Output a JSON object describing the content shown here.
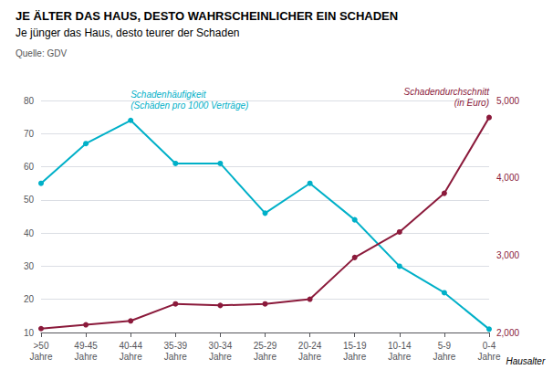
{
  "chart_data": {
    "type": "line",
    "title": "JE ÄLTER DAS HAUS, DESTO WAHRSCHEINLICHER EIN SCHADEN",
    "subtitle": "Je jünger das Haus, desto teurer der Schaden",
    "annotations": [
      "Quelle: GDV"
    ],
    "xlabel": "Hausalter",
    "categories": [
      ">50\nJahre",
      "49-45\nJahre",
      "40-44\nJahre",
      "35-39\nJahre",
      "30-34\nJahre",
      "25-29\nJahre",
      "20-24\nJahre",
      "15-19\nJahre",
      "10-14\nJahre",
      "5-9\nJahre",
      "0-4\nJahre"
    ],
    "series": [
      {
        "name": "Schadenhäufigkeit\n(Schäden pro 1000 Verträge)",
        "color": "#00B0C8",
        "values": [
          55,
          67,
          74,
          61,
          61,
          46,
          55,
          44,
          30,
          22,
          11
        ]
      },
      {
        "name": "Schadendurchschnitt\n(in Euro)",
        "color": "#8B1A3B",
        "axis": "y2",
        "values": [
          2050,
          2100,
          2150,
          2370,
          2350,
          2370,
          2430,
          2970,
          3300,
          3800,
          4780
        ]
      }
    ],
    "ylim": [
      10,
      80
    ],
    "yticks": [
      10,
      20,
      30,
      40,
      50,
      60,
      70,
      80
    ],
    "y2lim": [
      2000,
      5000
    ],
    "y2ticks": [
      2000,
      3000,
      4000,
      5000
    ],
    "grid": true
  }
}
